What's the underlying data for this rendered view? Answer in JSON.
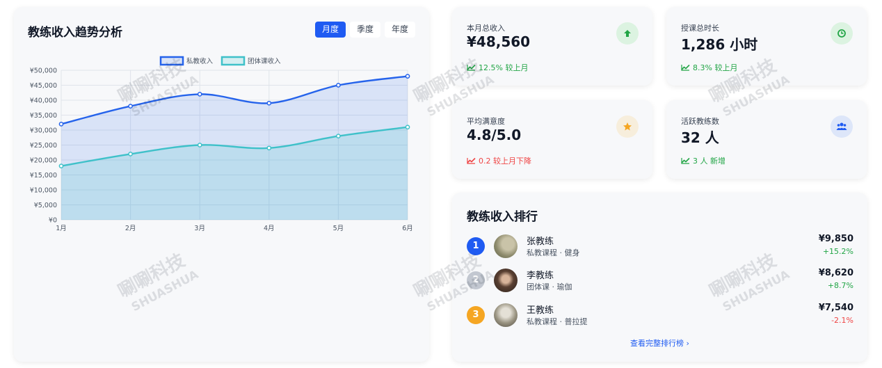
{
  "chart_card": {
    "title": "教练收入趋势分析",
    "tabs": [
      {
        "label": "月度",
        "active": true
      },
      {
        "label": "季度",
        "active": false
      },
      {
        "label": "年度",
        "active": false
      }
    ]
  },
  "chart_data": {
    "type": "line",
    "area": true,
    "categories": [
      "1月",
      "2月",
      "3月",
      "4月",
      "5月",
      "6月"
    ],
    "series": [
      {
        "name": "私教收入",
        "values": [
          32000,
          38000,
          42000,
          39000,
          45000,
          48000
        ],
        "color": "#2563eb",
        "fill": "rgba(37,99,235,0.14)"
      },
      {
        "name": "团体课收入",
        "values": [
          18000,
          22000,
          25000,
          24000,
          28000,
          31000
        ],
        "color": "#3fc1c9",
        "fill": "rgba(63,193,201,0.18)"
      }
    ],
    "ylim": [
      0,
      50000
    ],
    "yticks": [
      "¥0",
      "¥5,000",
      "¥10,000",
      "¥15,000",
      "¥20,000",
      "¥25,000",
      "¥30,000",
      "¥35,000",
      "¥40,000",
      "¥45,000",
      "¥50,000"
    ],
    "grid": true,
    "legend": "top-center"
  },
  "stats": [
    {
      "label": "本月总收入",
      "value": "¥48,560",
      "trend": "12.5% 较上月",
      "direction": "up",
      "icon": "arrow-up-icon",
      "icon_color": "#22a546",
      "icon_bg": "#dcf3e1"
    },
    {
      "label": "授课总时长",
      "value": "1,286 小时",
      "trend": "8.3% 较上月",
      "direction": "up",
      "icon": "clock-icon",
      "icon_color": "#22a546",
      "icon_bg": "#dcf3e1"
    },
    {
      "label": "平均满意度",
      "value": "4.8/5.0",
      "trend": "0.2 较上月下降",
      "direction": "down",
      "icon": "star-icon",
      "icon_color": "#f5a623",
      "icon_bg": "#f7eedc"
    },
    {
      "label": "活跃教练数",
      "value": "32 人",
      "trend": "3 人 新增",
      "direction": "up",
      "icon": "users-icon",
      "icon_color": "#1f5bf2",
      "icon_bg": "#dde6f9"
    }
  ],
  "ranking": {
    "title": "教练收入排行",
    "items": [
      {
        "rank": "1",
        "name": "张教练",
        "desc": "私教课程 · 健身",
        "amount": "¥9,850",
        "change": "+15.2%",
        "direction": "up",
        "badge_color": "#1f5bf2"
      },
      {
        "rank": "2",
        "name": "李教练",
        "desc": "团体课 · 瑜伽",
        "amount": "¥8,620",
        "change": "+8.7%",
        "direction": "up",
        "badge_color": "#c2c7d0"
      },
      {
        "rank": "3",
        "name": "王教练",
        "desc": "私教课程 · 普拉提",
        "amount": "¥7,540",
        "change": "-2.1%",
        "direction": "down",
        "badge_color": "#f5a623"
      }
    ],
    "view_all": "查看完整排行榜 ›"
  },
  "watermark": {
    "text_cn": "唰唰科技",
    "text_en": "SHUASHUA"
  }
}
